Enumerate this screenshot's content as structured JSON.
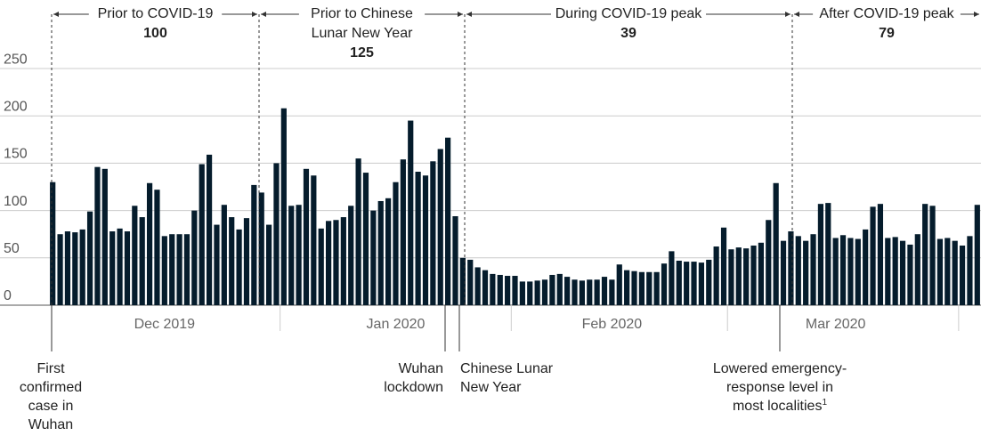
{
  "chart_data": {
    "type": "bar",
    "categories": [
      null,
      null,
      null,
      null,
      null,
      null,
      null,
      null,
      null,
      null,
      null,
      null,
      null,
      null,
      null,
      "Dec 2019",
      null,
      null,
      null,
      null,
      null,
      null,
      null,
      null,
      null,
      null,
      null,
      null,
      null,
      null,
      null,
      null,
      null,
      null,
      null,
      null,
      null,
      null,
      null,
      null,
      null,
      null,
      null,
      null,
      null,
      null,
      "Jan 2020",
      null,
      null,
      null,
      null,
      null,
      null,
      null,
      null,
      null,
      null,
      null,
      null,
      null,
      null,
      null,
      null,
      null,
      null,
      null,
      null,
      null,
      null,
      null,
      null,
      null,
      null,
      null,
      null,
      "Feb 2020",
      null,
      null,
      null,
      null,
      null,
      null,
      null,
      null,
      null,
      null,
      null,
      null,
      null,
      null,
      null,
      null,
      null,
      null,
      null,
      null,
      null,
      null,
      null,
      null,
      null,
      null,
      null,
      null,
      null,
      "Mar 2020",
      null,
      null,
      null,
      null,
      null,
      null,
      null,
      null,
      null,
      null,
      null,
      null,
      null,
      null,
      null,
      null,
      null,
      null,
      null
    ],
    "values": [
      130,
      75,
      78,
      77,
      80,
      99,
      146,
      144,
      78,
      81,
      78,
      105,
      93,
      129,
      122,
      73,
      75,
      75,
      75,
      100,
      149,
      159,
      85,
      106,
      93,
      80,
      92,
      127,
      119,
      85,
      150,
      208,
      105,
      106,
      144,
      137,
      81,
      89,
      90,
      93,
      105,
      155,
      140,
      100,
      110,
      113,
      130,
      154,
      195,
      141,
      137,
      152,
      165,
      177,
      94,
      50,
      48,
      40,
      37,
      33,
      32,
      31,
      31,
      25,
      25,
      26,
      27,
      32,
      33,
      30,
      27,
      26,
      27,
      27,
      30,
      27,
      43,
      37,
      36,
      35,
      35,
      35,
      44,
      57,
      47,
      46,
      46,
      45,
      48,
      62,
      82,
      59,
      61,
      60,
      63,
      66,
      90,
      129,
      68,
      78,
      73,
      68,
      75,
      107,
      108,
      71,
      74,
      71,
      70,
      80,
      104,
      107,
      71,
      72,
      68,
      64,
      75,
      107,
      105,
      70,
      71,
      68,
      63,
      73,
      106
    ],
    "color": "#051c2c",
    "ylim": [
      0,
      260
    ],
    "yticks": [
      0,
      50,
      100,
      150,
      200,
      250
    ],
    "grid": true,
    "periods": [
      {
        "label": [
          "Prior to COVID-19"
        ],
        "value": 100
      },
      {
        "label": [
          "Prior to Chinese",
          "Lunar New Year"
        ],
        "value": 125
      },
      {
        "label": [
          "During COVID-19 peak"
        ],
        "value": 39
      },
      {
        "label": [
          "After COVID-19 peak"
        ],
        "value": 79
      }
    ],
    "events": [
      {
        "label": [
          "First",
          "confirmed",
          "case in",
          "Wuhan"
        ]
      },
      {
        "label": [
          "Wuhan",
          "lockdown"
        ]
      },
      {
        "label": [
          "Chinese Lunar",
          "New Year"
        ]
      },
      {
        "label": [
          "Lowered emergency-",
          "response level in",
          "most localities"
        ],
        "footnote": "1"
      }
    ]
  }
}
